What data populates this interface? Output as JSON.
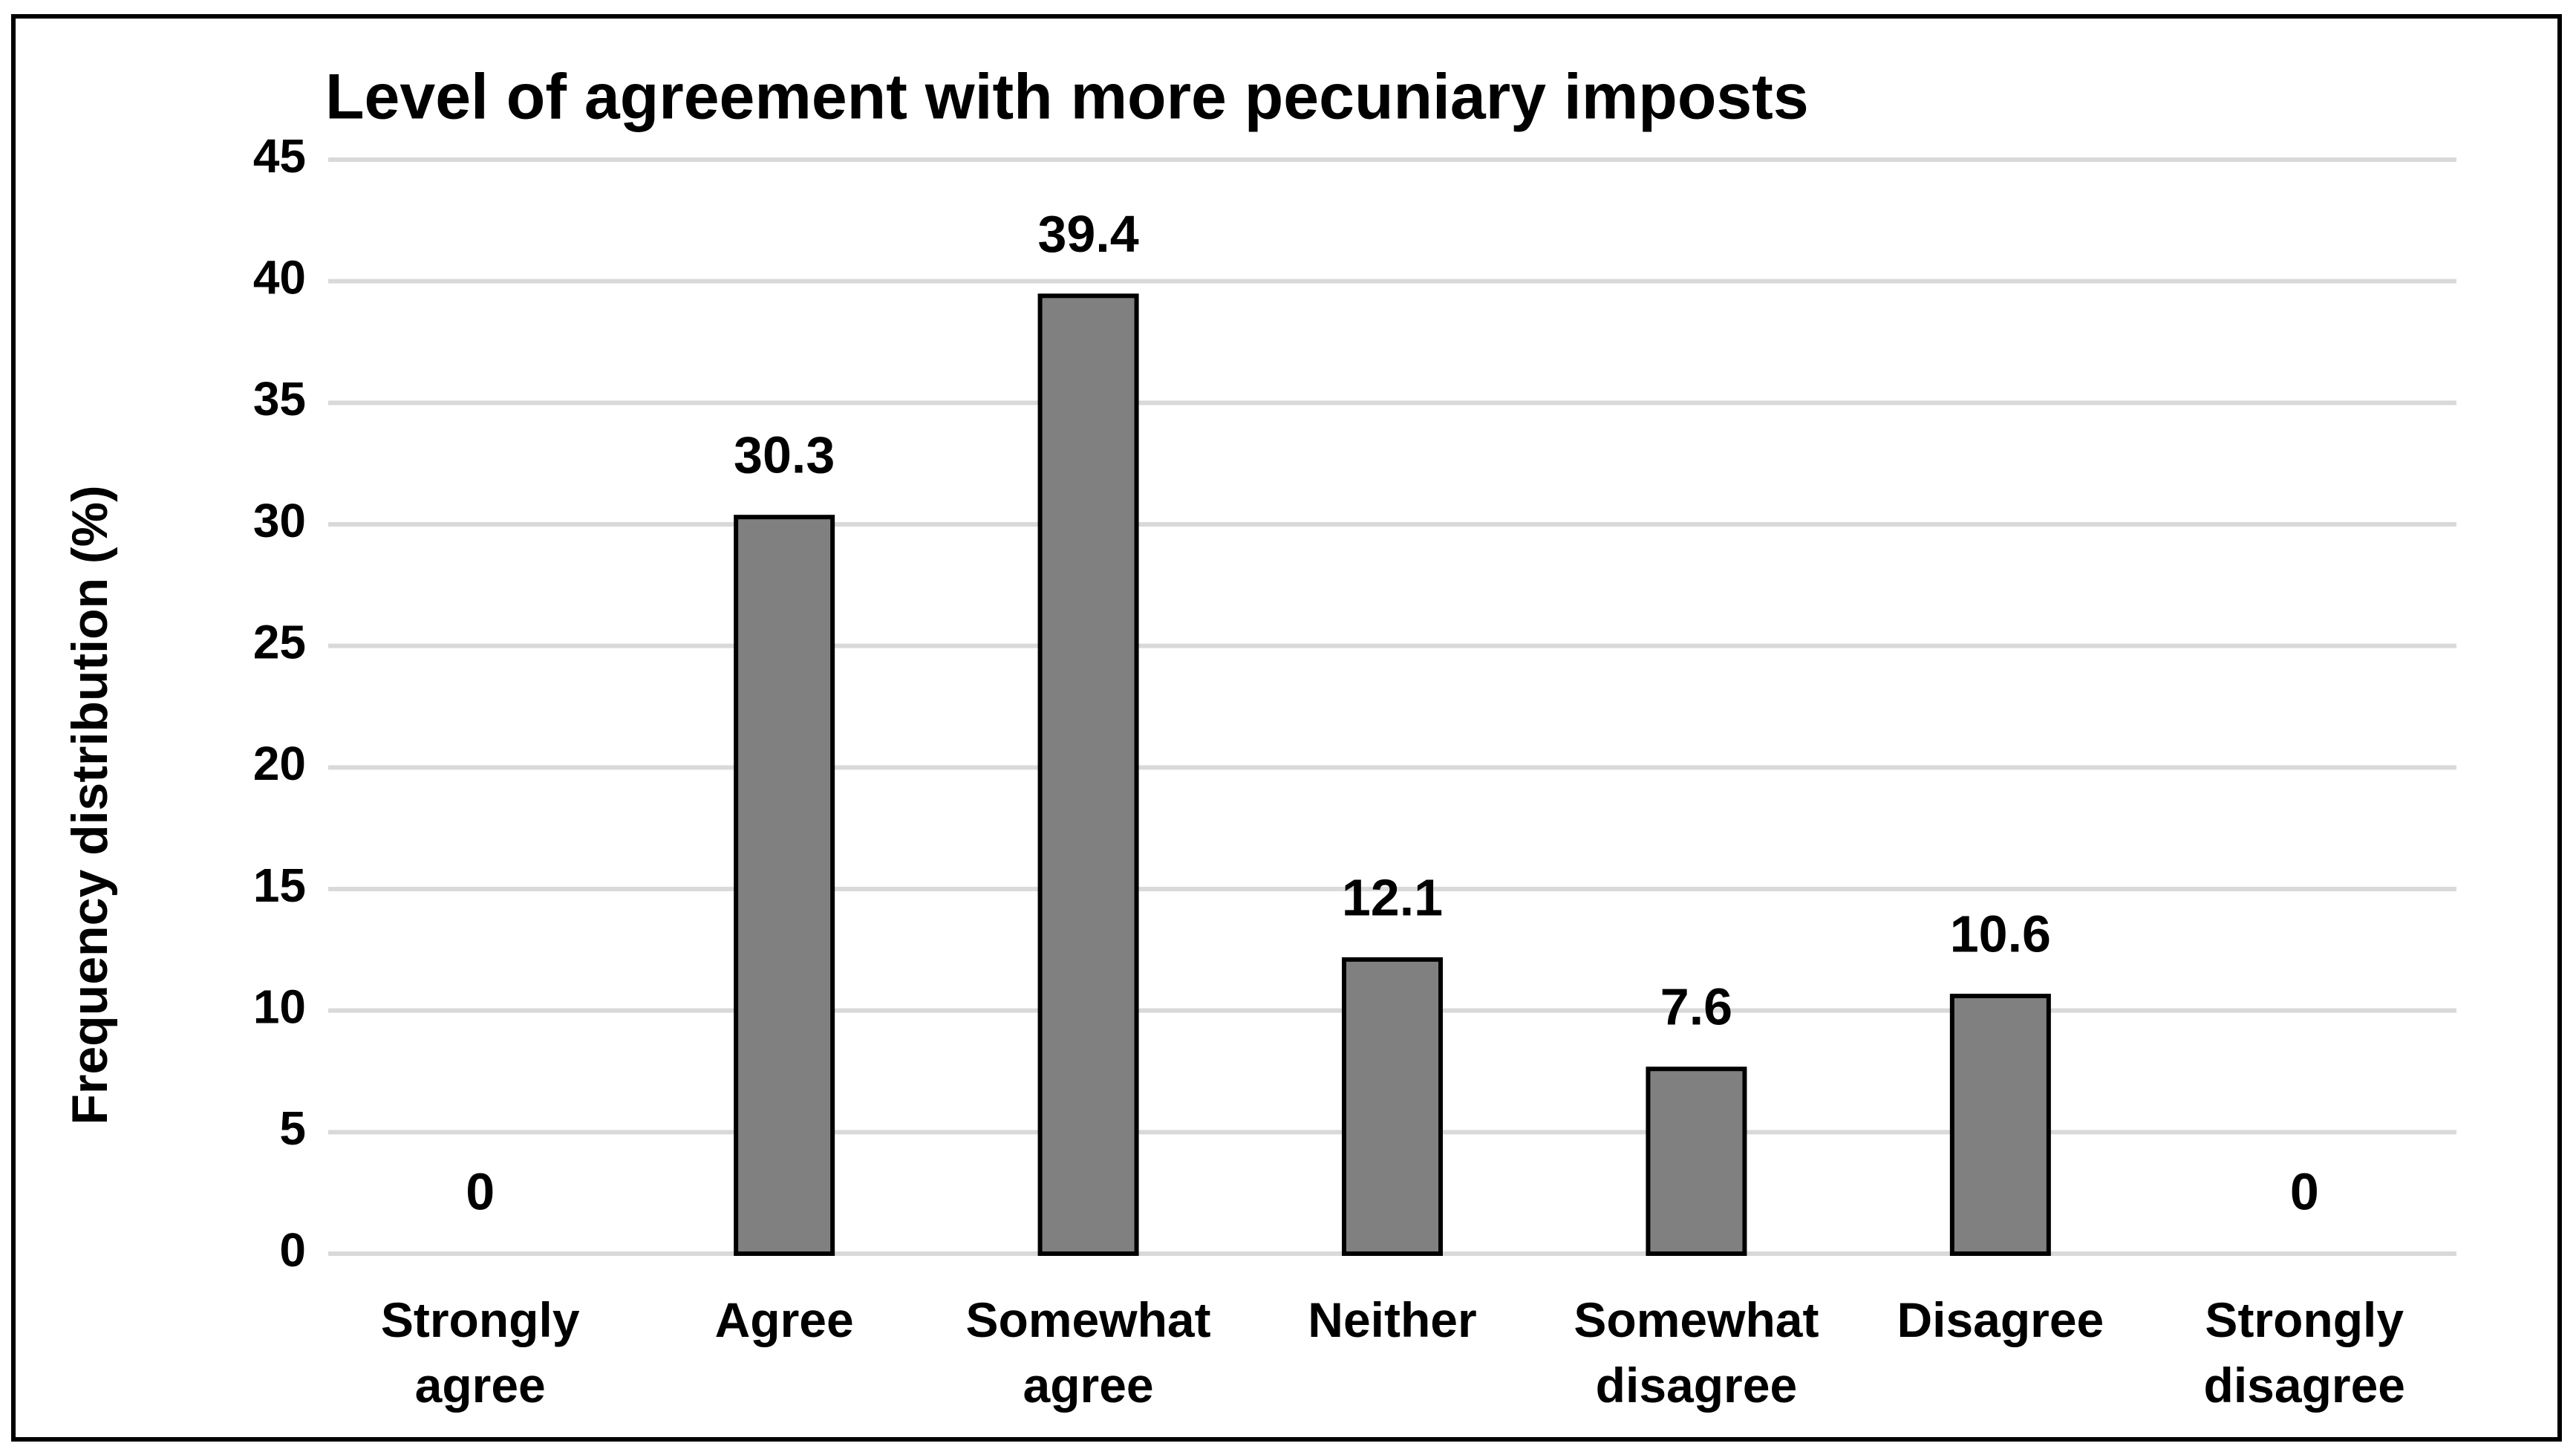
{
  "chart_data": {
    "type": "bar",
    "title": "Level of agreement with more pecuniary imposts",
    "y_label": "Frequency distribution (%)",
    "categories": [
      "Strongly agree",
      "Agree",
      "Somewhat agree",
      "Neither",
      "Somewhat disagree",
      "Disagree",
      "Strongly disagree"
    ],
    "values": [
      0,
      30.3,
      39.4,
      12.1,
      7.6,
      10.6,
      0
    ],
    "color": "#808080",
    "ylim": [
      0,
      45
    ],
    "yticks": [
      0,
      5,
      10,
      15,
      20,
      25,
      30,
      35,
      40,
      45
    ],
    "grid": true
  }
}
